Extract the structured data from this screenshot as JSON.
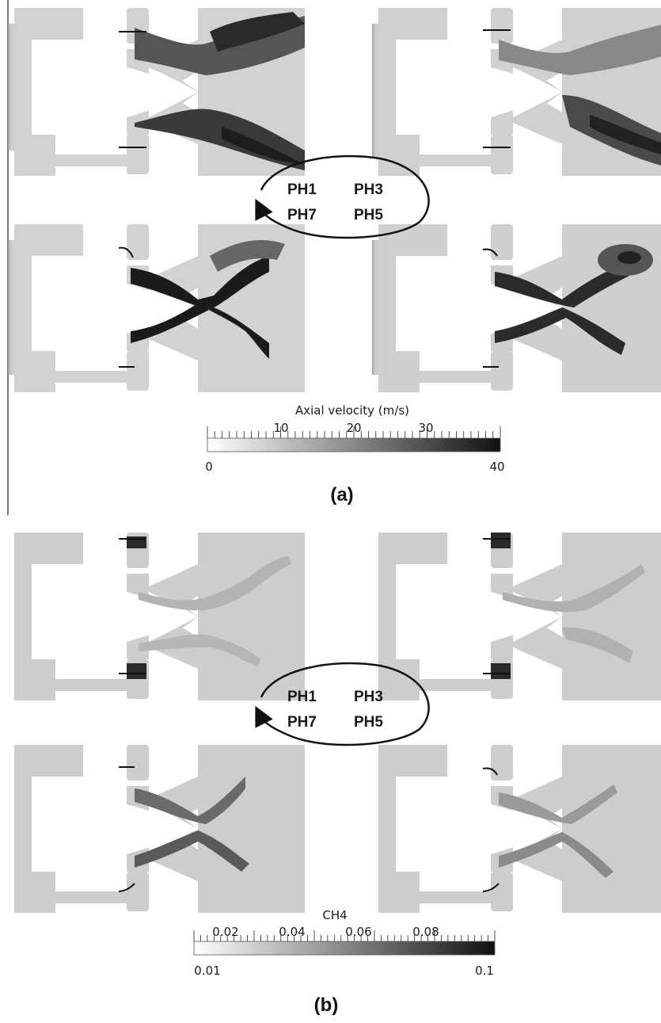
{
  "panels": [
    {
      "label": "(a)",
      "phases": {
        "top_left": "PH1",
        "top_right": "PH3",
        "bottom_left": "PH7",
        "bottom_right": "PH5"
      },
      "colorbar": {
        "title": "Axial velocity (m/s)",
        "min": 0,
        "max": 40,
        "top_ticks": [
          "10",
          "20",
          "30"
        ],
        "bottom_ticks": [
          "0",
          "40"
        ],
        "top_tick_values": [
          10,
          20,
          30
        ],
        "colors": [
          "#ffffff",
          "#111111"
        ]
      }
    },
    {
      "label": "(b)",
      "phases": {
        "top_left": "PH1",
        "top_right": "PH3",
        "bottom_left": "PH7",
        "bottom_right": "PH5"
      },
      "colorbar": {
        "title": "CH4",
        "min": 0.01,
        "max": 0.1,
        "top_ticks": [
          "0.02",
          "0.04",
          "0.06",
          "0.08"
        ],
        "bottom_ticks": [
          "0.01",
          "0.1"
        ],
        "top_tick_values": [
          0.02,
          0.04,
          0.06,
          0.08
        ],
        "colors": [
          "#ffffff",
          "#111111"
        ]
      }
    }
  ],
  "colors": {
    "domain_fill_a": "#d0d0d0",
    "domain_fill_b": "#cfcfcf",
    "jet_dark": "#1e1e1e",
    "arrow": "#111111"
  }
}
